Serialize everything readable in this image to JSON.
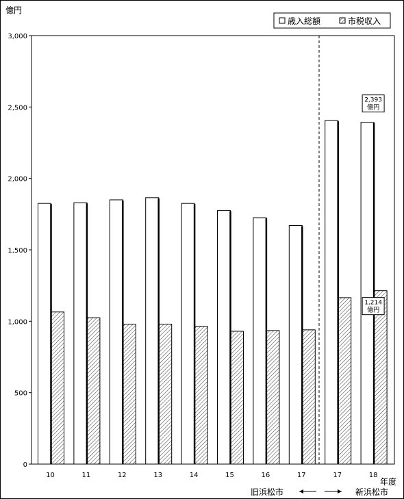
{
  "chart_data": {
    "type": "bar",
    "y_unit_label": "億円",
    "x_unit_label": "年度",
    "categories": [
      "10",
      "11",
      "12",
      "13",
      "14",
      "15",
      "16",
      "17",
      "17",
      "18"
    ],
    "series": [
      {
        "name": "歳入総額",
        "values": [
          1825,
          1830,
          1850,
          1865,
          1825,
          1775,
          1725,
          1670,
          2405,
          2393
        ]
      },
      {
        "name": "市税収入",
        "values": [
          1065,
          1025,
          980,
          980,
          965,
          930,
          935,
          940,
          1165,
          1214
        ]
      }
    ],
    "ylim": [
      0,
      3000
    ],
    "yticks": [
      0,
      500,
      1000,
      1500,
      2000,
      2500,
      3000
    ],
    "ytick_labels": [
      "0",
      "500",
      "1,000",
      "1,500",
      "2,000",
      "2,500",
      "3,000"
    ],
    "legend_placement": "top-right",
    "annotations": [
      {
        "category_index": 9,
        "series_index": 0,
        "value_text": "2,393",
        "unit_text": "億円"
      },
      {
        "category_index": 9,
        "series_index": 1,
        "value_text": "1,214",
        "unit_text": "億円"
      }
    ],
    "divider": {
      "after_category_index": 7,
      "left_label": "旧浜松市",
      "right_label": "新浜松市"
    }
  }
}
